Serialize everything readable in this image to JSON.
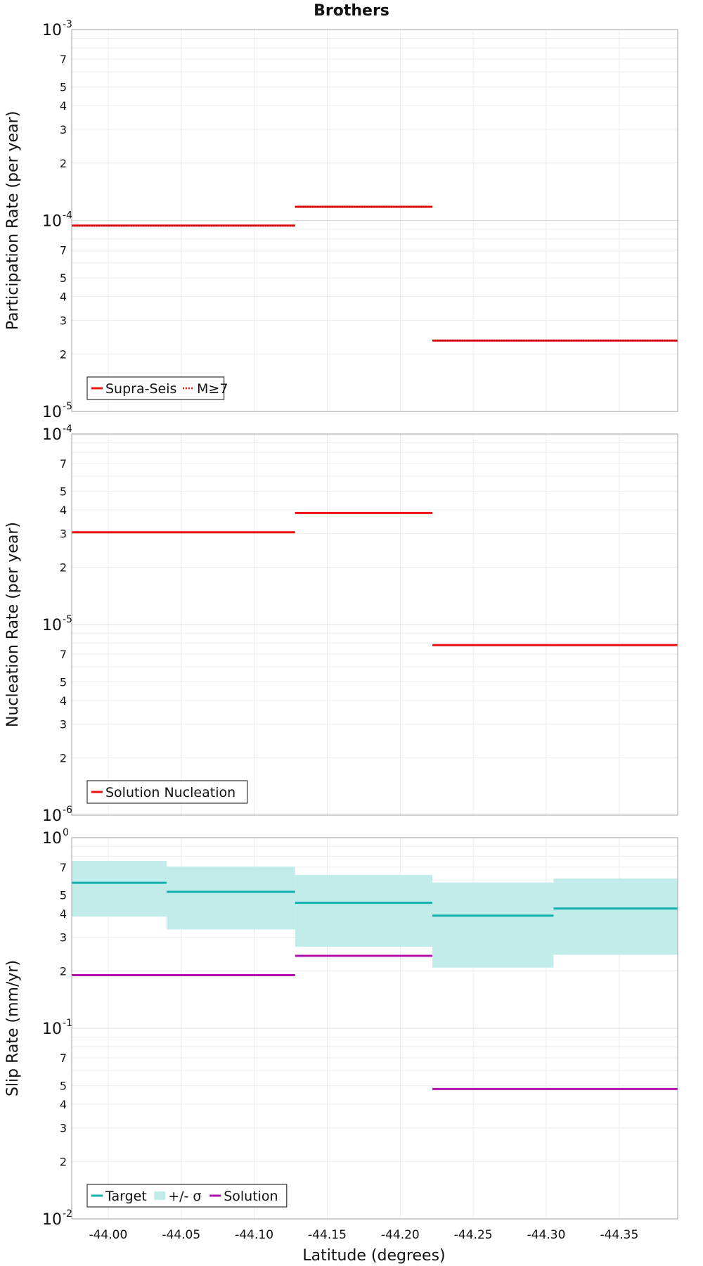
{
  "chart_data": {
    "title": "Brothers",
    "xlabel": "Latitude (degrees)",
    "x_axis": {
      "range": [
        -43.975,
        -44.39
      ],
      "reversed": true,
      "ticks": [
        -44.0,
        -44.05,
        -44.1,
        -44.15,
        -44.2,
        -44.25,
        -44.3,
        -44.35
      ],
      "tick_labels": [
        "-44.00",
        "-44.05",
        "-44.10",
        "-44.15",
        "-44.20",
        "-44.25",
        "-44.30",
        "-44.35"
      ]
    },
    "grid": true,
    "panels": [
      {
        "id": "participation",
        "type": "line",
        "ylabel": "Participation Rate (per year)",
        "yscale": "log",
        "ylim": [
          1e-05,
          0.001
        ],
        "decade_labels": [
          {
            "base": "10",
            "exp": "-3"
          },
          {
            "base": "10",
            "exp": "-4"
          },
          {
            "base": "10",
            "exp": "-5"
          }
        ],
        "minor_labels": [
          "2",
          "3",
          "4",
          "5",
          "7"
        ],
        "legend": {
          "position": "bottom-left",
          "entries": [
            {
              "label": "Supra-Seis",
              "color": "#ee1111",
              "style": "solid"
            },
            {
              "label": "M≥7",
              "color": "#ee1111",
              "style": "dotted"
            }
          ]
        },
        "series": [
          {
            "name": "Supra-Seis",
            "color": "#ee1111",
            "style": "solid",
            "segments": [
              {
                "x": [
                  -43.975,
                  -44.04
                ],
                "y": 9.4e-05
              },
              {
                "x": [
                  -44.04,
                  -44.128
                ],
                "y": 9.4e-05
              },
              {
                "x": [
                  -44.128,
                  -44.222
                ],
                "y": 0.000118
              },
              {
                "x": [
                  -44.222,
                  -44.305
                ],
                "y": 2.35e-05
              },
              {
                "x": [
                  -44.305,
                  -44.39
                ],
                "y": 2.35e-05
              }
            ]
          },
          {
            "name": "M≥7",
            "color": "#ee1111",
            "style": "dotted",
            "segments": [
              {
                "x": [
                  -43.975,
                  -44.04
                ],
                "y": 9.4e-05
              },
              {
                "x": [
                  -44.04,
                  -44.128
                ],
                "y": 9.4e-05
              },
              {
                "x": [
                  -44.128,
                  -44.222
                ],
                "y": 0.000118
              },
              {
                "x": [
                  -44.222,
                  -44.305
                ],
                "y": 2.35e-05
              },
              {
                "x": [
                  -44.305,
                  -44.39
                ],
                "y": 2.35e-05
              }
            ]
          }
        ]
      },
      {
        "id": "nucleation",
        "type": "line",
        "ylabel": "Nucleation Rate (per year)",
        "yscale": "log",
        "ylim": [
          1e-06,
          0.0001
        ],
        "decade_labels": [
          {
            "base": "10",
            "exp": "-4"
          },
          {
            "base": "10",
            "exp": "-5"
          },
          {
            "base": "10",
            "exp": "-6"
          }
        ],
        "minor_labels": [
          "2",
          "3",
          "4",
          "5",
          "7"
        ],
        "legend": {
          "position": "bottom-left",
          "entries": [
            {
              "label": "Solution Nucleation",
              "color": "#ee1111",
              "style": "solid"
            }
          ]
        },
        "series": [
          {
            "name": "Solution Nucleation",
            "color": "#ee1111",
            "style": "solid",
            "segments": [
              {
                "x": [
                  -43.975,
                  -44.04
                ],
                "y": 3.05e-05
              },
              {
                "x": [
                  -44.04,
                  -44.128
                ],
                "y": 3.05e-05
              },
              {
                "x": [
                  -44.128,
                  -44.222
                ],
                "y": 3.85e-05
              },
              {
                "x": [
                  -44.222,
                  -44.305
                ],
                "y": 7.8e-06
              },
              {
                "x": [
                  -44.305,
                  -44.39
                ],
                "y": 7.8e-06
              }
            ]
          }
        ]
      },
      {
        "id": "slip",
        "type": "line",
        "ylabel": "Slip Rate (mm/yr)",
        "yscale": "log",
        "ylim": [
          0.01,
          1
        ],
        "decade_labels": [
          {
            "base": "10",
            "exp": "0"
          },
          {
            "base": "10",
            "exp": "-1"
          },
          {
            "base": "10",
            "exp": "-2"
          }
        ],
        "minor_labels": [
          "2",
          "3",
          "4",
          "5",
          "7"
        ],
        "legend": {
          "position": "bottom-left",
          "entries": [
            {
              "label": "Target",
              "color": "#11b0b0",
              "style": "solid"
            },
            {
              "label": "+/- σ",
              "color": "#c2ecea",
              "style": "band"
            },
            {
              "label": "Solution",
              "color": "#b010b0",
              "style": "solid"
            }
          ]
        },
        "bands": [
          {
            "name": "+/- σ",
            "color": "#c2ecea",
            "segments": [
              {
                "x": [
                  -43.975,
                  -44.04
                ],
                "low": 0.385,
                "high": 0.755
              },
              {
                "x": [
                  -44.04,
                  -44.128
                ],
                "low": 0.33,
                "high": 0.705
              },
              {
                "x": [
                  -44.128,
                  -44.222
                ],
                "low": 0.268,
                "high": 0.638
              },
              {
                "x": [
                  -44.222,
                  -44.305
                ],
                "low": 0.208,
                "high": 0.582
              },
              {
                "x": [
                  -44.305,
                  -44.39
                ],
                "low": 0.243,
                "high": 0.61
              }
            ]
          }
        ],
        "series": [
          {
            "name": "Target",
            "color": "#11b0b0",
            "style": "solid",
            "segments": [
              {
                "x": [
                  -43.975,
                  -44.04
                ],
                "y": 0.58
              },
              {
                "x": [
                  -44.04,
                  -44.128
                ],
                "y": 0.52
              },
              {
                "x": [
                  -44.128,
                  -44.222
                ],
                "y": 0.455
              },
              {
                "x": [
                  -44.222,
                  -44.305
                ],
                "y": 0.39
              },
              {
                "x": [
                  -44.305,
                  -44.39
                ],
                "y": 0.425
              }
            ]
          },
          {
            "name": "Solution",
            "color": "#b010b0",
            "style": "solid",
            "segments": [
              {
                "x": [
                  -43.975,
                  -44.04
                ],
                "y": 0.19
              },
              {
                "x": [
                  -44.04,
                  -44.128
                ],
                "y": 0.19
              },
              {
                "x": [
                  -44.128,
                  -44.222
                ],
                "y": 0.24
              },
              {
                "x": [
                  -44.222,
                  -44.305
                ],
                "y": 0.048
              },
              {
                "x": [
                  -44.305,
                  -44.39
                ],
                "y": 0.048
              }
            ]
          }
        ]
      }
    ]
  }
}
